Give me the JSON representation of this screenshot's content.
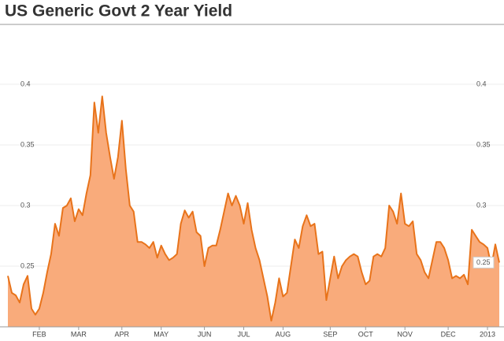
{
  "chart_data": {
    "type": "area",
    "title": "US Generic Govt 2 Year Yield",
    "color": "#e8731a",
    "fill": "#f9ab7b",
    "grid": true,
    "xlim": [
      0,
      125
    ],
    "ylim": [
      0.2,
      0.45
    ],
    "yticks": [
      0.25,
      0.3,
      0.35,
      0.4
    ],
    "y2ticks": [
      0.3,
      0.35,
      0.4
    ],
    "last_value_label": "0.25",
    "xticks": [
      {
        "value": 8,
        "label": "FEB"
      },
      {
        "value": 18,
        "label": "MAR"
      },
      {
        "value": 29,
        "label": "APR"
      },
      {
        "value": 39,
        "label": "MAY"
      },
      {
        "value": 50,
        "label": "JUN"
      },
      {
        "value": 60,
        "label": "JUL"
      },
      {
        "value": 70,
        "label": "AUG"
      },
      {
        "value": 82,
        "label": "SEP"
      },
      {
        "value": 91,
        "label": "OCT"
      },
      {
        "value": 101,
        "label": "NOV"
      },
      {
        "value": 112,
        "label": "DEC"
      },
      {
        "value": 122,
        "label": "2013"
      }
    ],
    "values": [
      0.242,
      0.228,
      0.226,
      0.22,
      0.235,
      0.242,
      0.215,
      0.21,
      0.215,
      0.228,
      0.245,
      0.26,
      0.285,
      0.275,
      0.298,
      0.3,
      0.306,
      0.287,
      0.297,
      0.292,
      0.31,
      0.325,
      0.385,
      0.36,
      0.39,
      0.36,
      0.34,
      0.322,
      0.34,
      0.37,
      0.33,
      0.3,
      0.295,
      0.27,
      0.27,
      0.268,
      0.265,
      0.27,
      0.257,
      0.267,
      0.26,
      0.255,
      0.257,
      0.26,
      0.285,
      0.296,
      0.29,
      0.295,
      0.278,
      0.275,
      0.25,
      0.265,
      0.267,
      0.267,
      0.28,
      0.295,
      0.31,
      0.3,
      0.308,
      0.3,
      0.285,
      0.302,
      0.28,
      0.265,
      0.255,
      0.24,
      0.225,
      0.205,
      0.22,
      0.24,
      0.225,
      0.228,
      0.25,
      0.272,
      0.265,
      0.283,
      0.292,
      0.283,
      0.285,
      0.26,
      0.262,
      0.222,
      0.24,
      0.258,
      0.24,
      0.25,
      0.255,
      0.258,
      0.26,
      0.258,
      0.245,
      0.235,
      0.238,
      0.258,
      0.26,
      0.258,
      0.265,
      0.3,
      0.295,
      0.285,
      0.31,
      0.285,
      0.283,
      0.287,
      0.26,
      0.255,
      0.245,
      0.24,
      0.255,
      0.27,
      0.27,
      0.265,
      0.255,
      0.24,
      0.242,
      0.24,
      0.243,
      0.235,
      0.28,
      0.275,
      0.27,
      0.268,
      0.265,
      0.25,
      0.268,
      0.253
    ]
  }
}
